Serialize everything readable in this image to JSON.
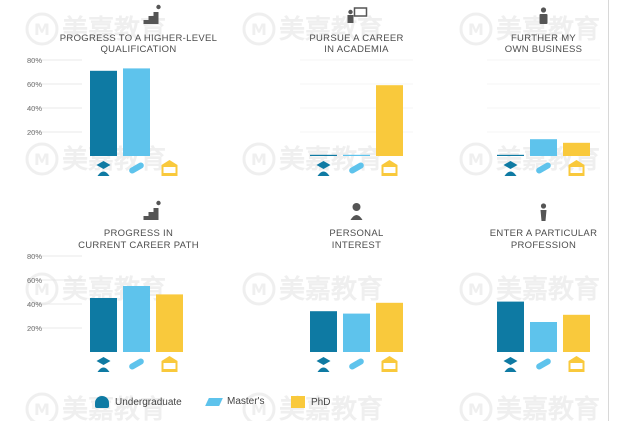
{
  "colors": {
    "undergraduate": "#0e7aa3",
    "masters": "#5ec3ec",
    "phd": "#f9c93c",
    "axis_text": "#6f6f6f",
    "title_text": "#4d4d4d",
    "grid": "#e3e3e3"
  },
  "watermark": "美嘉教育",
  "legend": [
    {
      "label": "Undergraduate",
      "color": "#0e7aa3",
      "icon": "graduate-icon"
    },
    {
      "label": "Master's",
      "color": "#5ec3ec",
      "icon": "diploma-icon"
    },
    {
      "label": "PhD",
      "color": "#f9c93c",
      "icon": "institution-icon"
    }
  ],
  "chart_data": [
    {
      "type": "bar",
      "title": "PROGRESS TO A HIGHER-LEVEL QUALIFICATION",
      "title_lines": [
        "PROGRESS TO A HIGHER-LEVEL",
        "QUALIFICATION"
      ],
      "icon": "climbing-stairs-icon",
      "categories": [
        "Undergraduate",
        "Master's",
        "PhD"
      ],
      "values": [
        71,
        73,
        0
      ],
      "ylim": [
        0,
        80
      ],
      "yticks": [
        {
          "value": 20,
          "label": "20%"
        },
        {
          "value": 40,
          "label": "40%"
        },
        {
          "value": 60,
          "label": "60%"
        },
        {
          "value": 80,
          "label": "80%"
        }
      ],
      "grid": false
    },
    {
      "type": "bar",
      "title": "PURSUE A CAREER IN ACADEMIA",
      "title_lines": [
        "PURSUE A CAREER",
        "IN ACADEMIA"
      ],
      "icon": "lecturer-icon",
      "categories": [
        "Undergraduate",
        "Master's",
        "PhD"
      ],
      "values": [
        1,
        1,
        59
      ],
      "ylim": [
        0,
        80
      ],
      "yticks": [],
      "grid": true
    },
    {
      "type": "bar",
      "title": "FURTHER MY OWN BUSINESS",
      "title_lines": [
        "FURTHER MY",
        "OWN BUSINESS"
      ],
      "icon": "businessman-icon",
      "categories": [
        "Undergraduate",
        "Master's",
        "PhD"
      ],
      "values": [
        1,
        14,
        11
      ],
      "ylim": [
        0,
        80
      ],
      "yticks": [],
      "grid": true
    },
    {
      "type": "bar",
      "title": "PROGRESS IN CURRENT CAREER PATH",
      "title_lines": [
        "PROGRESS IN",
        "CURRENT CAREER PATH"
      ],
      "icon": "climbing-stairs-icon",
      "categories": [
        "Undergraduate",
        "Master's",
        "PhD"
      ],
      "values": [
        45,
        55,
        48
      ],
      "ylim": [
        0,
        80
      ],
      "yticks": [
        {
          "value": 20,
          "label": "20%"
        },
        {
          "value": 40,
          "label": "40%"
        },
        {
          "value": 60,
          "label": "60%"
        },
        {
          "value": 80,
          "label": "80%"
        }
      ],
      "grid": false
    },
    {
      "type": "bar",
      "title": "PERSONAL INTEREST",
      "title_lines": [
        "PERSONAL",
        "INTEREST"
      ],
      "icon": "idea-person-icon",
      "categories": [
        "Undergraduate",
        "Master's",
        "PhD"
      ],
      "values": [
        34,
        32,
        41
      ],
      "ylim": [
        0,
        80
      ],
      "yticks": [],
      "grid": false
    },
    {
      "type": "bar",
      "title": "ENTER A PARTICULAR PROFESSION",
      "title_lines": [
        "ENTER A PARTICULAR",
        "PROFESSION"
      ],
      "icon": "professional-icon",
      "categories": [
        "Undergraduate",
        "Master's",
        "PhD"
      ],
      "values": [
        42,
        25,
        31
      ],
      "ylim": [
        0,
        80
      ],
      "yticks": [],
      "grid": false
    }
  ]
}
